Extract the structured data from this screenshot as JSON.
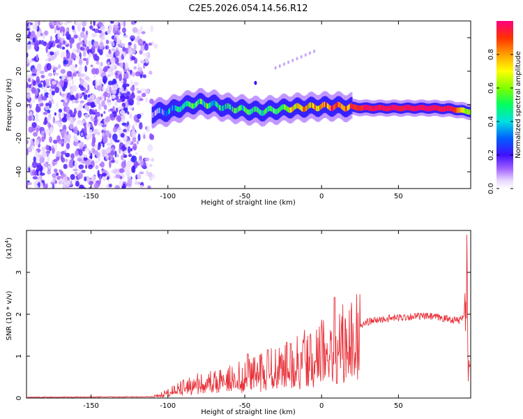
{
  "title": "C2E5.2026.054.14.56.R12",
  "chart_data": [
    {
      "type": "heatmap",
      "name": "spectrogram",
      "xlabel": "Height of straight line (km)",
      "ylabel": "Frequency (Hz)",
      "xlim": [
        -192,
        97
      ],
      "ylim": [
        -50,
        50
      ],
      "xticks": [
        -150,
        -100,
        -50,
        0,
        50
      ],
      "yticks": [
        -40,
        -20,
        0,
        20,
        40
      ],
      "colorbar": {
        "label": "Normalized spectral amplitude",
        "range": [
          0,
          1
        ],
        "ticks": [
          0.0,
          0.2,
          0.4,
          0.6,
          0.8
        ]
      },
      "description_points": {
        "noise_region_x": [
          -192,
          -112
        ],
        "signal_start_x": -110,
        "signal_end_x": 97,
        "ridge": [
          {
            "x": -110,
            "y": -5,
            "amp": 0.15
          },
          {
            "x": -100,
            "y": -4,
            "amp": 0.3
          },
          {
            "x": -90,
            "y": -1,
            "amp": 0.45
          },
          {
            "x": -80,
            "y": 1,
            "amp": 0.5
          },
          {
            "x": -70,
            "y": 0,
            "amp": 0.45
          },
          {
            "x": -60,
            "y": -2,
            "amp": 0.45
          },
          {
            "x": -50,
            "y": -3,
            "amp": 0.5
          },
          {
            "x": -40,
            "y": -4,
            "amp": 0.5
          },
          {
            "x": -30,
            "y": -3,
            "amp": 0.55
          },
          {
            "x": -20,
            "y": -2,
            "amp": 0.7
          },
          {
            "x": -10,
            "y": -1.5,
            "amp": 0.75
          },
          {
            "x": 0,
            "y": -1,
            "amp": 0.8
          },
          {
            "x": 10,
            "y": -1,
            "amp": 0.85
          },
          {
            "x": 20,
            "y": -1.5,
            "amp": 0.9
          },
          {
            "x": 30,
            "y": -2,
            "amp": 0.95
          },
          {
            "x": 50,
            "y": -2,
            "amp": 0.97
          },
          {
            "x": 70,
            "y": -2,
            "amp": 0.98
          },
          {
            "x": 85,
            "y": -2.5,
            "amp": 0.95
          },
          {
            "x": 95,
            "y": -4,
            "amp": 0.6
          }
        ]
      }
    },
    {
      "type": "line",
      "name": "snr",
      "xlabel": "Height of straight line (km)",
      "ylabel": "SNR (10 * v/v)",
      "yscale_label": "(x10",
      "yscale_exp": "4",
      "xlim": [
        -192,
        97
      ],
      "ylim": [
        0,
        4
      ],
      "xticks": [
        -150,
        -100,
        -50,
        0,
        50
      ],
      "yticks": [
        0,
        1,
        2,
        3
      ],
      "color": "#e8323a",
      "envelope": [
        {
          "x": -192,
          "y": 0.02
        },
        {
          "x": -110,
          "y": 0.03
        },
        {
          "x": -100,
          "y": 0.15
        },
        {
          "x": -90,
          "y": 0.3
        },
        {
          "x": -80,
          "y": 0.4
        },
        {
          "x": -70,
          "y": 0.45
        },
        {
          "x": -60,
          "y": 0.55
        },
        {
          "x": -50,
          "y": 0.6
        },
        {
          "x": -40,
          "y": 0.7
        },
        {
          "x": -30,
          "y": 0.8
        },
        {
          "x": -20,
          "y": 0.9
        },
        {
          "x": -10,
          "y": 1.1
        },
        {
          "x": 0,
          "y": 1.25
        },
        {
          "x": 10,
          "y": 1.4
        },
        {
          "x": 20,
          "y": 1.6
        },
        {
          "x": 30,
          "y": 1.82
        },
        {
          "x": 40,
          "y": 1.88
        },
        {
          "x": 50,
          "y": 1.92
        },
        {
          "x": 60,
          "y": 1.95
        },
        {
          "x": 70,
          "y": 1.95
        },
        {
          "x": 80,
          "y": 1.9
        },
        {
          "x": 90,
          "y": 1.85
        },
        {
          "x": 94,
          "y": 2.1
        },
        {
          "x": 95,
          "y": 3.9
        },
        {
          "x": 96,
          "y": 0.6
        },
        {
          "x": 97,
          "y": 0.8
        }
      ],
      "spikes": [
        {
          "x": -48,
          "y": 1.05
        },
        {
          "x": -35,
          "y": 1.15
        },
        {
          "x": -20,
          "y": 1.3
        },
        {
          "x": 8.5,
          "y": 2.4
        },
        {
          "x": 10,
          "y": 0.35
        }
      ]
    }
  ]
}
